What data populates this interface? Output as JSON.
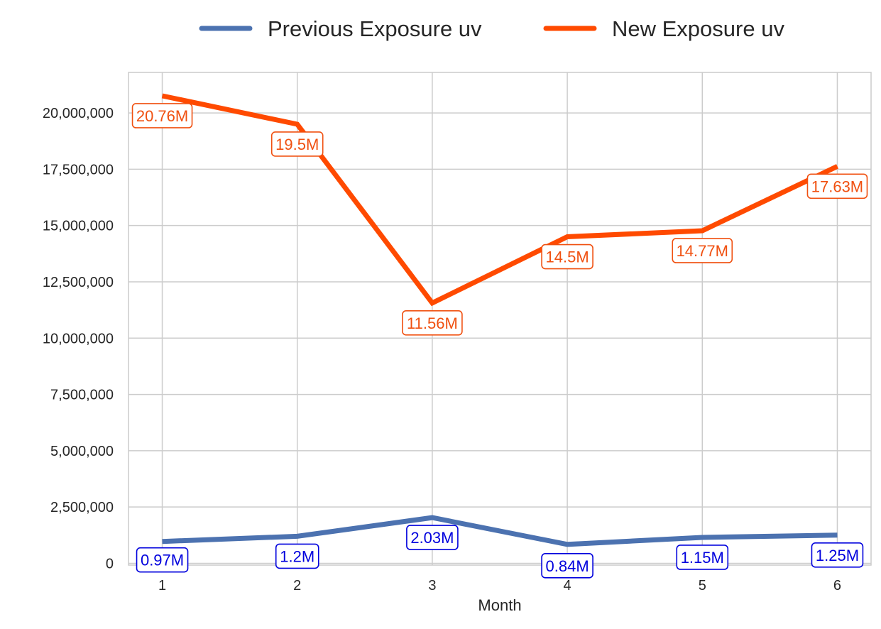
{
  "chart_data": {
    "type": "line",
    "title": "",
    "xlabel": "Month",
    "ylabel": "",
    "x": [
      1,
      2,
      3,
      4,
      5,
      6
    ],
    "x_tick_labels": [
      "1",
      "2",
      "3",
      "4",
      "5",
      "6"
    ],
    "xlim": [
      0.75,
      6.25
    ],
    "ylim": [
      -80000,
      21800000
    ],
    "y_ticks": [
      0,
      2500000,
      5000000,
      7500000,
      10000000,
      12500000,
      15000000,
      17500000,
      20000000
    ],
    "y_tick_labels": [
      "0",
      "2,500,000",
      "5,000,000",
      "7,500,000",
      "10,000,000",
      "12,500,000",
      "15,000,000",
      "17,500,000",
      "20,000,000"
    ],
    "grid": true,
    "legend": "top-center",
    "series": [
      {
        "name": "Previous Exposure uv",
        "color": "#4c72b0",
        "label_color": "#0000dd",
        "values": [
          970000,
          1200000,
          2030000,
          840000,
          1150000,
          1250000
        ],
        "labels": [
          "0.97M",
          "1.2M",
          "2.03M",
          "0.84M",
          "1.15M",
          "1.25M"
        ]
      },
      {
        "name": "New Exposure uv",
        "color": "#ff4a00",
        "label_color": "#f05010",
        "values": [
          20760000,
          19500000,
          11560000,
          14500000,
          14770000,
          17630000
        ],
        "labels": [
          "20.76M",
          "19.5M",
          "11.56M",
          "14.5M",
          "14.77M",
          "17.63M"
        ]
      }
    ]
  }
}
